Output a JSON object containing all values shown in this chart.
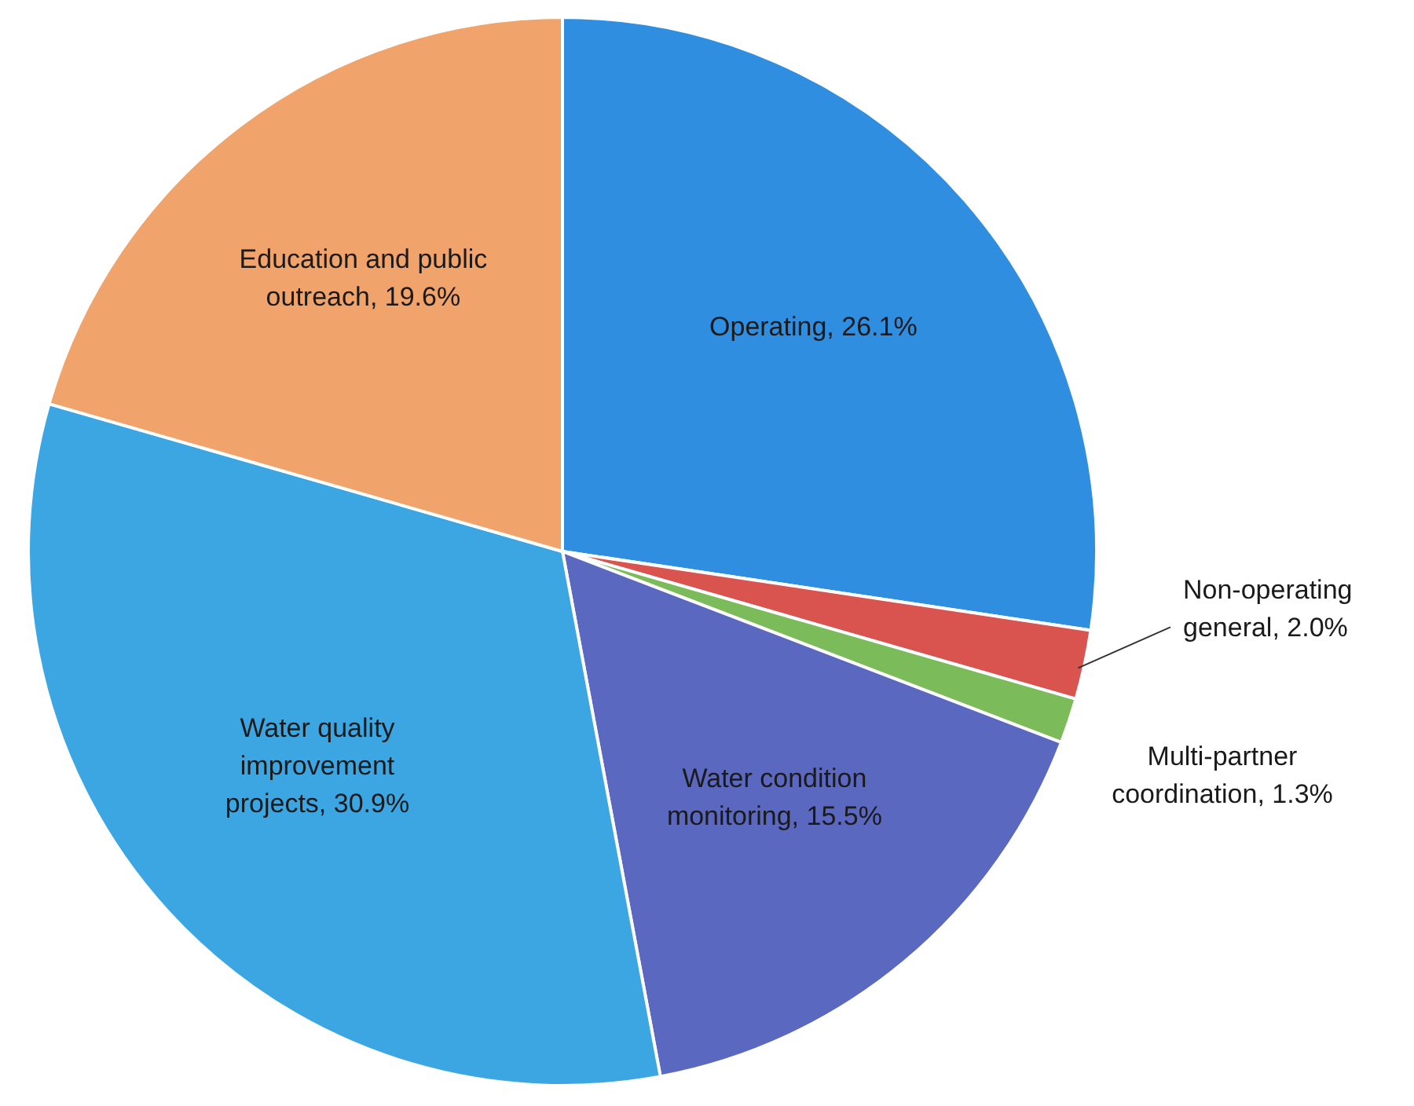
{
  "chart_data": {
    "type": "pie",
    "categories": [
      "Operating",
      "Non-operating general",
      "Multi-partner coordination",
      "Water condition monitoring",
      "Water quality improvement projects",
      "Education and public outreach"
    ],
    "values": [
      26.1,
      2.0,
      1.3,
      15.5,
      30.9,
      19.6
    ],
    "value_labels": [
      "26.1%",
      "2.0%",
      "1.3%",
      "15.5%",
      "30.9%",
      "19.6%"
    ],
    "colors": [
      "#2f8ee0",
      "#d9534f",
      "#7cbb5a",
      "#5a68bf",
      "#3ba6e2",
      "#f0a36a"
    ]
  }
}
